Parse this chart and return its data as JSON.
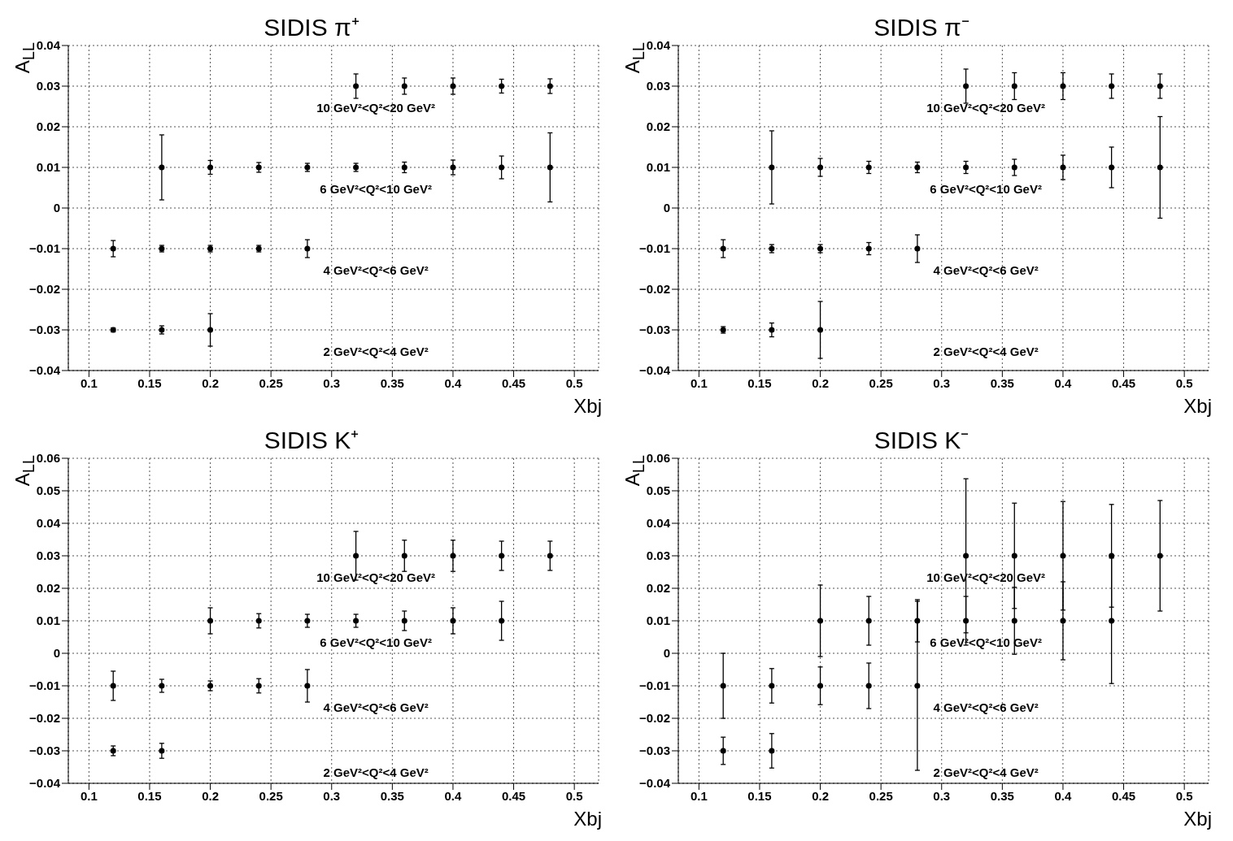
{
  "chart_data": [
    {
      "type": "scatter",
      "title": "SIDIS π⁺",
      "xlabel": "Xbj",
      "ylabel": "A$_{LL}$",
      "xlim": [
        0.083,
        0.52
      ],
      "xticks": [
        0.1,
        0.15,
        0.2,
        0.25,
        0.3,
        0.35,
        0.4,
        0.45,
        0.5
      ],
      "ylim": [
        -0.04,
        0.04
      ],
      "yticks": [
        -0.04,
        -0.03,
        -0.02,
        -0.01,
        0,
        0.01,
        0.02,
        0.03,
        0.04
      ],
      "grid": true,
      "marker": "circle",
      "series": [
        {
          "color": "#000000",
          "x": [
            0.12,
            0.16,
            0.2
          ],
          "values": [
            -0.03,
            -0.03,
            -0.03
          ],
          "errors": [
            0.0005,
            0.001,
            0.004
          ]
        },
        {
          "color": "#000000",
          "x": [
            0.12,
            0.16,
            0.2,
            0.24,
            0.28
          ],
          "values": [
            -0.01,
            -0.01,
            -0.01,
            -0.01,
            -0.01
          ],
          "errors": [
            0.002,
            0.0008,
            0.0008,
            0.0008,
            0.0022
          ]
        },
        {
          "color": "#000000",
          "x": [
            0.16,
            0.2,
            0.24,
            0.28,
            0.32,
            0.36,
            0.4,
            0.44,
            0.48
          ],
          "values": [
            0.01,
            0.01,
            0.01,
            0.01,
            0.01,
            0.01,
            0.01,
            0.01,
            0.01
          ],
          "errors": [
            0.008,
            0.0017,
            0.0012,
            0.001,
            0.001,
            0.0013,
            0.0018,
            0.0028,
            0.0085
          ]
        },
        {
          "color": "#000000",
          "x": [
            0.32,
            0.36,
            0.4,
            0.44,
            0.48
          ],
          "values": [
            0.03,
            0.03,
            0.03,
            0.03,
            0.03
          ],
          "errors": [
            0.003,
            0.002,
            0.002,
            0.0017,
            0.0018
          ]
        }
      ],
      "annotations": [
        "2 GeV²<Q²<4 GeV²",
        "4 GeV²<Q²<6 GeV²",
        "6 GeV²<Q²<10 GeV²",
        "10 GeV²<Q²<20 GeV²"
      ]
    },
    {
      "type": "scatter",
      "title": "SIDIS π⁻",
      "xlabel": "Xbj",
      "ylabel": "A$_{LL}$",
      "xlim": [
        0.083,
        0.52
      ],
      "xticks": [
        0.1,
        0.15,
        0.2,
        0.25,
        0.3,
        0.35,
        0.4,
        0.45,
        0.5
      ],
      "ylim": [
        -0.04,
        0.04
      ],
      "yticks": [
        -0.04,
        -0.03,
        -0.02,
        -0.01,
        0,
        0.01,
        0.02,
        0.03,
        0.04
      ],
      "grid": true,
      "marker": "circle",
      "series": [
        {
          "color": "#000000",
          "x": [
            0.12,
            0.16,
            0.2
          ],
          "values": [
            -0.03,
            -0.03,
            -0.03
          ],
          "errors": [
            0.0008,
            0.0017,
            0.007
          ]
        },
        {
          "color": "#000000",
          "x": [
            0.12,
            0.16,
            0.2,
            0.24,
            0.28
          ],
          "values": [
            -0.01,
            -0.01,
            -0.01,
            -0.01,
            -0.01
          ],
          "errors": [
            0.0022,
            0.001,
            0.001,
            0.0015,
            0.0034
          ]
        },
        {
          "color": "#000000",
          "x": [
            0.16,
            0.2,
            0.24,
            0.28,
            0.32,
            0.36,
            0.4,
            0.44,
            0.48
          ],
          "values": [
            0.01,
            0.01,
            0.01,
            0.01,
            0.01,
            0.01,
            0.01,
            0.01,
            0.01
          ],
          "errors": [
            0.009,
            0.0022,
            0.0015,
            0.0013,
            0.0015,
            0.002,
            0.003,
            0.005,
            0.0125
          ]
        },
        {
          "color": "#000000",
          "x": [
            0.32,
            0.36,
            0.4,
            0.44,
            0.48
          ],
          "values": [
            0.03,
            0.03,
            0.03,
            0.03,
            0.03
          ],
          "errors": [
            0.0042,
            0.0033,
            0.0033,
            0.003,
            0.003
          ]
        }
      ],
      "annotations": [
        "2 GeV²<Q²<4 GeV²",
        "4 GeV²<Q²<6 GeV²",
        "6 GeV²<Q²<10 GeV²",
        "10 GeV²<Q²<20 GeV²"
      ]
    },
    {
      "type": "scatter",
      "title": "SIDIS K⁺",
      "xlabel": "Xbj",
      "ylabel": "A$_{LL}$",
      "xlim": [
        0.083,
        0.52
      ],
      "xticks": [
        0.1,
        0.15,
        0.2,
        0.25,
        0.3,
        0.35,
        0.4,
        0.45,
        0.5
      ],
      "ylim": [
        -0.04,
        0.06
      ],
      "yticks": [
        -0.04,
        -0.03,
        -0.02,
        -0.01,
        0,
        0.01,
        0.02,
        0.03,
        0.04,
        0.05,
        0.06
      ],
      "grid": true,
      "marker": "circle",
      "series": [
        {
          "color": "#000000",
          "x": [
            0.12,
            0.16
          ],
          "values": [
            -0.03,
            -0.03
          ],
          "errors": [
            0.0015,
            0.0023
          ]
        },
        {
          "color": "#000000",
          "x": [
            0.12,
            0.16,
            0.2,
            0.24,
            0.28
          ],
          "values": [
            -0.01,
            -0.01,
            -0.01,
            -0.01,
            -0.01
          ],
          "errors": [
            0.0045,
            0.002,
            0.0015,
            0.0022,
            0.005
          ]
        },
        {
          "color": "#000000",
          "x": [
            0.2,
            0.24,
            0.28,
            0.32,
            0.36,
            0.4,
            0.44
          ],
          "values": [
            0.01,
            0.01,
            0.01,
            0.01,
            0.01,
            0.01,
            0.01
          ],
          "errors": [
            0.004,
            0.0022,
            0.002,
            0.002,
            0.003,
            0.004,
            0.006
          ]
        },
        {
          "color": "#000000",
          "x": [
            0.32,
            0.36,
            0.4,
            0.44,
            0.48
          ],
          "values": [
            0.03,
            0.03,
            0.03,
            0.03,
            0.03
          ],
          "errors": [
            0.0075,
            0.0048,
            0.0048,
            0.0045,
            0.0045
          ]
        }
      ],
      "annotations": [
        "2 GeV²<Q²<4 GeV²",
        "4 GeV²<Q²<6 GeV²",
        "6 GeV²<Q²<10 GeV²",
        "10 GeV²<Q²<20 GeV²"
      ]
    },
    {
      "type": "scatter",
      "title": "SIDIS K⁻",
      "xlabel": "Xbj",
      "ylabel": "A$_{LL}$",
      "xlim": [
        0.083,
        0.52
      ],
      "xticks": [
        0.1,
        0.15,
        0.2,
        0.25,
        0.3,
        0.35,
        0.4,
        0.45,
        0.5
      ],
      "ylim": [
        -0.04,
        0.06
      ],
      "yticks": [
        -0.04,
        -0.03,
        -0.02,
        -0.01,
        0,
        0.01,
        0.02,
        0.03,
        0.04,
        0.05,
        0.06
      ],
      "grid": true,
      "marker": "circle",
      "series": [
        {
          "color": "#000000",
          "x": [
            0.12,
            0.16
          ],
          "values": [
            -0.03,
            -0.03
          ],
          "errors": [
            0.0042,
            0.0053
          ]
        },
        {
          "color": "#000000",
          "x": [
            0.12,
            0.16,
            0.2,
            0.24,
            0.28
          ],
          "values": [
            -0.01,
            -0.01,
            -0.01,
            -0.01,
            -0.01
          ],
          "errors": [
            0.01,
            0.0053,
            0.0058,
            0.007,
            0.026
          ]
        },
        {
          "color": "#000000",
          "x": [
            0.2,
            0.24,
            0.28,
            0.32,
            0.36,
            0.4,
            0.44
          ],
          "values": [
            0.01,
            0.01,
            0.01,
            0.01,
            0.01,
            0.01,
            0.01
          ],
          "errors": [
            0.011,
            0.0075,
            0.0065,
            0.0075,
            0.0103,
            0.012,
            0.0193
          ]
        },
        {
          "color": "#000000",
          "x": [
            0.32,
            0.36,
            0.4,
            0.44,
            0.48
          ],
          "values": [
            0.03,
            0.03,
            0.03,
            0.03,
            0.03
          ],
          "errors": [
            0.0237,
            0.0162,
            0.0167,
            0.0158,
            0.017
          ]
        }
      ],
      "annotations": [
        "2 GeV²<Q²<4 GeV²",
        "4 GeV²<Q²<6 GeV²",
        "6 GeV²<Q²<10 GeV²",
        "10 GeV²<Q²<20 GeV²"
      ]
    }
  ]
}
